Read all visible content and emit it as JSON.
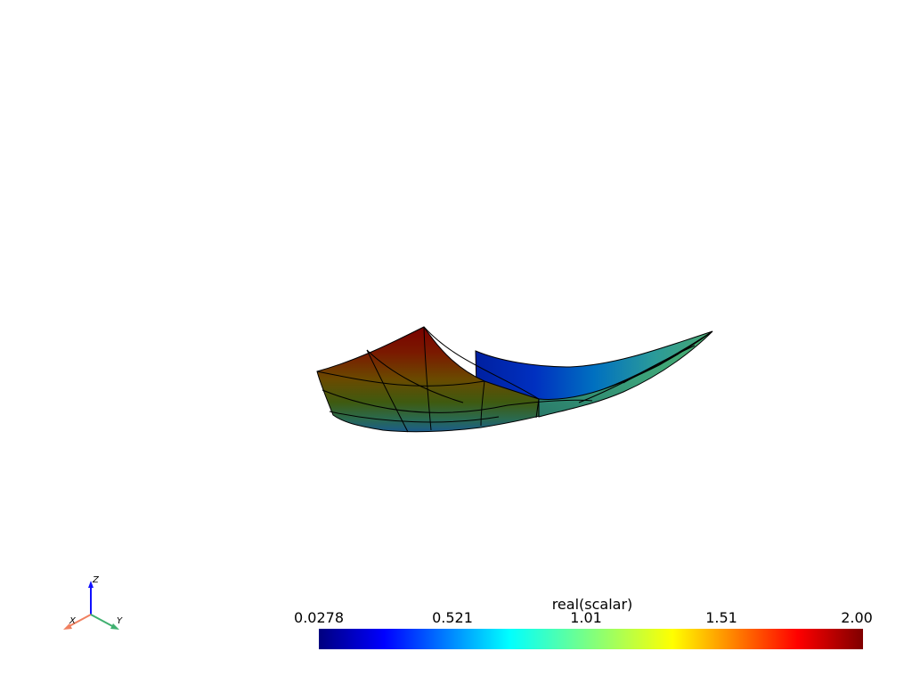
{
  "colorbar": {
    "title": "real(scalar)",
    "ticks": [
      "0.0278",
      "0.521",
      "1.01",
      "1.51",
      "2.00"
    ],
    "range": [
      0.0278,
      2.0
    ],
    "colormap": "jet"
  },
  "axes": {
    "x_label": "X",
    "y_label": "Y",
    "z_label": "Z",
    "x_color": "#f08060",
    "y_color": "#40b070",
    "z_color": "#1010ff"
  },
  "surface": {
    "edge_color": "#000000",
    "show_edges": true
  }
}
